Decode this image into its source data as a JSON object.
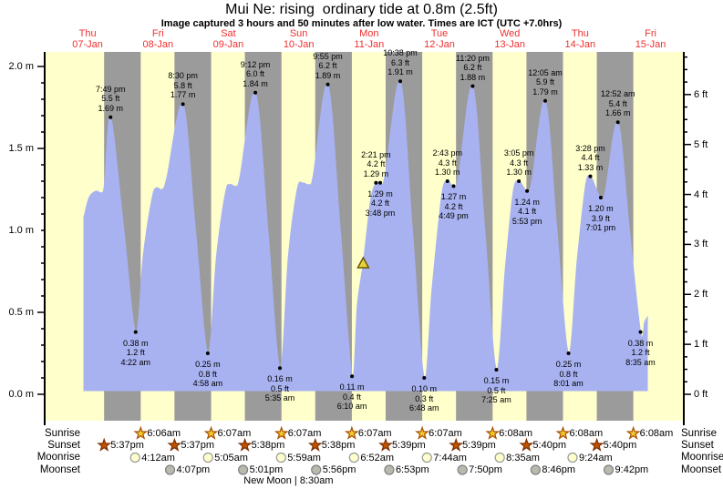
{
  "page": {
    "title": "Mui Ne: rising  ordinary tide at 0.8m (2.5ft)",
    "subtitle": "Image captured 3 hours and 50 minutes after low water. Times are ICT (UTC +7.0hrs)"
  },
  "colors": {
    "day_band": "#ffffcc",
    "night_band": "#9b9b9b",
    "tide_fill": "#a8b2f0",
    "day_label": "#f03030",
    "axis": "#000000",
    "marker_fill": "#e8d23c",
    "marker_stroke": "#6b5a00",
    "sunrise_fill": "#f2cb2e",
    "sunrise_stroke": "#a84f00",
    "sunset_fill": "#c25400",
    "sunset_stroke": "#7d2f00",
    "moonrise_fill": "#ffffcc",
    "moonrise_stroke": "#999999",
    "moonset_fill": "#b9b9ad",
    "moonset_stroke": "#808080"
  },
  "chart_data": {
    "type": "area",
    "title": "Mui Ne: rising  ordinary tide at 0.8m (2.5ft)",
    "x_axis": {
      "days": [
        {
          "weekday": "Thu",
          "date": "07-Jan"
        },
        {
          "weekday": "Fri",
          "date": "08-Jan"
        },
        {
          "weekday": "Sat",
          "date": "09-Jan"
        },
        {
          "weekday": "Sun",
          "date": "10-Jan"
        },
        {
          "weekday": "Mon",
          "date": "11-Jan"
        },
        {
          "weekday": "Tue",
          "date": "12-Jan"
        },
        {
          "weekday": "Wed",
          "date": "13-Jan"
        },
        {
          "weekday": "Thu",
          "date": "14-Jan"
        },
        {
          "weekday": "Fri",
          "date": "15-Jan"
        }
      ]
    },
    "y_axis_left": {
      "unit": "m",
      "range": [
        0,
        2.1
      ],
      "ticks": [
        {
          "v": 0.0,
          "label": "0.0 m"
        },
        {
          "v": 0.5,
          "label": "0.5 m"
        },
        {
          "v": 1.0,
          "label": "1.0 m"
        },
        {
          "v": 1.5,
          "label": "1.5 m"
        },
        {
          "v": 2.0,
          "label": "2.0 m"
        }
      ]
    },
    "y_axis_right": {
      "unit": "ft",
      "range": [
        0,
        6.9
      ],
      "ticks": [
        {
          "v": 0,
          "label": "0 ft"
        },
        {
          "v": 1,
          "label": "1 ft"
        },
        {
          "v": 2,
          "label": "2 ft"
        },
        {
          "v": 3,
          "label": "3 ft"
        },
        {
          "v": 4,
          "label": "4 ft"
        },
        {
          "v": 5,
          "label": "5 ft"
        },
        {
          "v": 6,
          "label": "6 ft"
        }
      ]
    },
    "high_tides": [
      {
        "t": 19.82,
        "h": 1.69,
        "time": "7:49 pm",
        "ft": "5.5 ft",
        "m": "1.69 m"
      },
      {
        "t": 44.5,
        "h": 1.77,
        "time": "8:30 pm",
        "ft": "5.8 ft",
        "m": "1.77 m"
      },
      {
        "t": 69.2,
        "h": 1.84,
        "time": "9:12 pm",
        "ft": "6.0 ft",
        "m": "1.84 m"
      },
      {
        "t": 93.92,
        "h": 1.89,
        "time": "9:55 pm",
        "ft": "6.2 ft",
        "m": "1.89 m"
      },
      {
        "t": 118.63,
        "h": 1.91,
        "time": "10:38 pm",
        "ft": "6.3 ft",
        "m": "1.91 m"
      },
      {
        "t": 143.33,
        "h": 1.88,
        "time": "11:20 pm",
        "ft": "6.2 ft",
        "m": "1.88 m"
      },
      {
        "t": 168.08,
        "h": 1.79,
        "time": "12:05 am",
        "ft": "5.9 ft",
        "m": "1.79 m"
      },
      {
        "t": 192.87,
        "h": 1.66,
        "time": "12:52 am",
        "ft": "5.4 ft",
        "m": "1.66 m"
      }
    ],
    "low_tides": [
      {
        "t": 28.37,
        "h": 0.38,
        "m": "0.38 m",
        "ft": "1.2 ft",
        "time": "4:22 am"
      },
      {
        "t": 52.97,
        "h": 0.25,
        "m": "0.25 m",
        "ft": "0.8 ft",
        "time": "4:58 am"
      },
      {
        "t": 77.58,
        "h": 0.16,
        "m": "0.16 m",
        "ft": "0.5 ft",
        "time": "5:35 am"
      },
      {
        "t": 102.17,
        "h": 0.11,
        "m": "0.11 m",
        "ft": "0.4 ft",
        "time": "6:10 am"
      },
      {
        "t": 126.8,
        "h": 0.1,
        "m": "0.10 m",
        "ft": "0.3 ft",
        "time": "6:48 am"
      },
      {
        "t": 151.42,
        "h": 0.15,
        "m": "0.15 m",
        "ft": "0.5 ft",
        "time": "7:25 am"
      },
      {
        "t": 176.02,
        "h": 0.25,
        "m": "0.25 m",
        "ft": "0.8 ft",
        "time": "8:01 am"
      },
      {
        "t": 200.58,
        "h": 0.38,
        "m": "0.38 m",
        "ft": "1.2 ft",
        "time": "8:35 am"
      }
    ],
    "minor_tides": [
      {
        "high": {
          "t": 110.35,
          "h": 1.29,
          "time": "2:21 pm",
          "ft": "4.2 ft",
          "m": "1.29 m"
        },
        "low": {
          "t": 111.8,
          "h": 1.29,
          "m": "1.29 m",
          "ft": "4.2 ft",
          "time": "3:48 pm"
        }
      },
      {
        "high": {
          "t": 134.72,
          "h": 1.3,
          "time": "2:43 pm",
          "ft": "4.3 ft",
          "m": "1.30 m"
        },
        "low": {
          "t": 136.82,
          "h": 1.27,
          "m": "1.27 m",
          "ft": "4.2 ft",
          "time": "4:49 pm"
        }
      },
      {
        "high": {
          "t": 159.08,
          "h": 1.3,
          "time": "3:05 pm",
          "ft": "4.3 ft",
          "m": "1.30 m"
        },
        "low": {
          "t": 161.88,
          "h": 1.24,
          "m": "1.24 m",
          "ft": "4.1 ft",
          "time": "5:53 pm"
        }
      },
      {
        "high": {
          "t": 183.47,
          "h": 1.33,
          "time": "3:28 pm",
          "ft": "4.4 ft",
          "m": "1.33 m"
        },
        "low": {
          "t": 187.02,
          "h": 1.2,
          "m": "1.20 m",
          "ft": "3.9 ft",
          "time": "7:01 pm"
        }
      }
    ],
    "current_marker": {
      "t": 106.0,
      "h": 0.8
    },
    "baseline_m": 0.025,
    "curve": [
      [
        10.72,
        1.08
      ],
      [
        12.5,
        1.2
      ],
      [
        14.8,
        1.24
      ],
      [
        16.8,
        1.23
      ],
      [
        17.8,
        1.29
      ],
      [
        19.82,
        1.69
      ],
      [
        24.1,
        1.05
      ],
      [
        28.37,
        0.38
      ],
      [
        31.0,
        0.85
      ],
      [
        34.0,
        1.2
      ],
      [
        35.5,
        1.26
      ],
      [
        37.3,
        1.25
      ],
      [
        39.0,
        1.32
      ],
      [
        44.5,
        1.77
      ],
      [
        48.7,
        1.02
      ],
      [
        52.97,
        0.25
      ],
      [
        56.0,
        0.85
      ],
      [
        59.0,
        1.23
      ],
      [
        60.5,
        1.28
      ],
      [
        62.5,
        1.27
      ],
      [
        64.0,
        1.33
      ],
      [
        69.2,
        1.84
      ],
      [
        73.4,
        1.02
      ],
      [
        77.58,
        0.16
      ],
      [
        80.5,
        0.85
      ],
      [
        83.5,
        1.25
      ],
      [
        85.3,
        1.29
      ],
      [
        87.5,
        1.28
      ],
      [
        89.0,
        1.34
      ],
      [
        93.92,
        1.89
      ],
      [
        98.1,
        1.02
      ],
      [
        102.17,
        0.11
      ],
      [
        104.0,
        0.55
      ],
      [
        106.0,
        0.8
      ],
      [
        108.5,
        1.18
      ],
      [
        110.35,
        1.29
      ],
      [
        111.8,
        1.29
      ],
      [
        113.5,
        1.34
      ],
      [
        118.63,
        1.91
      ],
      [
        122.7,
        1.02
      ],
      [
        126.8,
        0.1
      ],
      [
        129.5,
        0.65
      ],
      [
        132.8,
        1.22
      ],
      [
        134.72,
        1.3
      ],
      [
        135.8,
        1.285
      ],
      [
        136.82,
        1.27
      ],
      [
        138.5,
        1.33
      ],
      [
        143.33,
        1.88
      ],
      [
        147.4,
        1.02
      ],
      [
        151.42,
        0.15
      ],
      [
        154.5,
        0.78
      ],
      [
        157.2,
        1.24
      ],
      [
        159.08,
        1.3
      ],
      [
        160.5,
        1.27
      ],
      [
        161.88,
        1.24
      ],
      [
        163.5,
        1.3
      ],
      [
        168.08,
        1.79
      ],
      [
        172.0,
        1.02
      ],
      [
        176.02,
        0.25
      ],
      [
        179.0,
        0.82
      ],
      [
        181.8,
        1.27
      ],
      [
        183.47,
        1.33
      ],
      [
        185.3,
        1.26
      ],
      [
        187.02,
        1.2
      ],
      [
        188.6,
        1.24
      ],
      [
        192.87,
        1.66
      ],
      [
        196.7,
        1.02
      ],
      [
        200.58,
        0.38
      ],
      [
        202.0,
        0.44
      ],
      [
        202.9,
        0.47
      ]
    ],
    "astro": {
      "sunrise": {
        "label": "Sunrise",
        "icon": "sunrise-star",
        "events": [
          {
            "t": 30.1,
            "time": "6:06am"
          },
          {
            "t": 54.12,
            "time": "6:07am"
          },
          {
            "t": 78.12,
            "time": "6:07am"
          },
          {
            "t": 102.12,
            "time": "6:07am"
          },
          {
            "t": 126.12,
            "time": "6:07am"
          },
          {
            "t": 150.13,
            "time": "6:08am"
          },
          {
            "t": 174.13,
            "time": "6:08am"
          },
          {
            "t": 198.13,
            "time": "6:08am"
          }
        ]
      },
      "sunset": {
        "label": "Sunset",
        "icon": "sunset-star",
        "events": [
          {
            "t": 17.62,
            "time": "5:37pm"
          },
          {
            "t": 41.62,
            "time": "5:37pm"
          },
          {
            "t": 65.63,
            "time": "5:38pm"
          },
          {
            "t": 89.63,
            "time": "5:38pm"
          },
          {
            "t": 113.65,
            "time": "5:39pm"
          },
          {
            "t": 137.65,
            "time": "5:39pm"
          },
          {
            "t": 161.67,
            "time": "5:40pm"
          },
          {
            "t": 185.67,
            "time": "5:40pm"
          }
        ]
      },
      "moonrise": {
        "label": "Moonrise",
        "icon": "moonrise-circle",
        "events": [
          {
            "t": 28.2,
            "time": "4:12am"
          },
          {
            "t": 53.08,
            "time": "5:05am"
          },
          {
            "t": 77.98,
            "time": "5:59am"
          },
          {
            "t": 102.87,
            "time": "6:52am"
          },
          {
            "t": 127.73,
            "time": "7:44am"
          },
          {
            "t": 152.58,
            "time": "8:35am"
          },
          {
            "t": 177.4,
            "time": "9:24am"
          }
        ]
      },
      "moonset": {
        "label": "Moonset",
        "icon": "moonset-circle",
        "events": [
          {
            "t": 40.12,
            "time": "4:07pm"
          },
          {
            "t": 65.02,
            "time": "5:01pm"
          },
          {
            "t": 89.93,
            "time": "5:56pm"
          },
          {
            "t": 114.88,
            "time": "6:53pm"
          },
          {
            "t": 139.83,
            "time": "7:50pm"
          },
          {
            "t": 164.77,
            "time": "8:46pm"
          },
          {
            "t": 189.7,
            "time": "9:42pm"
          }
        ]
      }
    },
    "moon_phase": {
      "label": "New Moon | 8:30am",
      "t": 80.5
    }
  }
}
